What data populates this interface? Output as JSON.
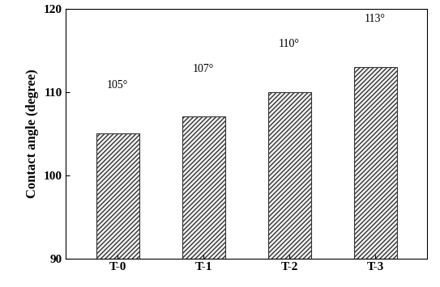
{
  "chart_data": {
    "type": "bar",
    "y_label": "Contact angle (degree)",
    "categories": [
      "T-0",
      "T-1",
      "T-2",
      "T-3"
    ],
    "values": [
      105,
      107,
      110,
      113
    ],
    "value_labels": [
      "105°",
      "107°",
      "110°",
      "113°"
    ],
    "data_labels": true,
    "color": "#f2f2f2",
    "ylim": [
      90,
      120
    ],
    "yticks": [
      90,
      100,
      110,
      120
    ],
    "grid": false
  }
}
